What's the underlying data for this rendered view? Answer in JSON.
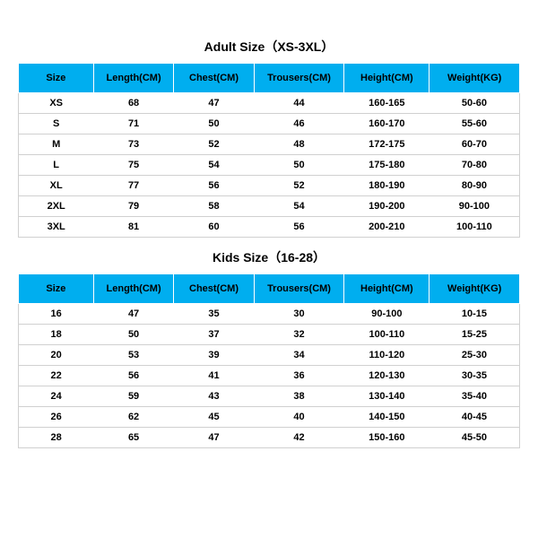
{
  "adult": {
    "title": "Adult Size（XS-3XL）",
    "columns": [
      "Size",
      "Length(CM)",
      "Chest(CM)",
      "Trousers(CM)",
      "Height(CM)",
      "Weight(KG)"
    ],
    "rows": [
      [
        "XS",
        "68",
        "47",
        "44",
        "160-165",
        "50-60"
      ],
      [
        "S",
        "71",
        "50",
        "46",
        "160-170",
        "55-60"
      ],
      [
        "M",
        "73",
        "52",
        "48",
        "172-175",
        "60-70"
      ],
      [
        "L",
        "75",
        "54",
        "50",
        "175-180",
        "70-80"
      ],
      [
        "XL",
        "77",
        "56",
        "52",
        "180-190",
        "80-90"
      ],
      [
        "2XL",
        "79",
        "58",
        "54",
        "190-200",
        "90-100"
      ],
      [
        "3XL",
        "81",
        "60",
        "56",
        "200-210",
        "100-110"
      ]
    ]
  },
  "kids": {
    "title": "Kids Size（16-28）",
    "columns": [
      "Size",
      "Length(CM)",
      "Chest(CM)",
      "Trousers(CM)",
      "Height(CM)",
      "Weight(KG)"
    ],
    "rows": [
      [
        "16",
        "47",
        "35",
        "30",
        "90-100",
        "10-15"
      ],
      [
        "18",
        "50",
        "37",
        "32",
        "100-110",
        "15-25"
      ],
      [
        "20",
        "53",
        "39",
        "34",
        "110-120",
        "25-30"
      ],
      [
        "22",
        "56",
        "41",
        "36",
        "120-130",
        "30-35"
      ],
      [
        "24",
        "59",
        "43",
        "38",
        "130-140",
        "35-40"
      ],
      [
        "26",
        "62",
        "45",
        "40",
        "140-150",
        "40-45"
      ],
      [
        "28",
        "65",
        "47",
        "42",
        "150-160",
        "45-50"
      ]
    ]
  },
  "style": {
    "header_bg": "#00aeef",
    "row_border": "#d0d0d0",
    "text_color": "#000000",
    "background": "#ffffff"
  }
}
